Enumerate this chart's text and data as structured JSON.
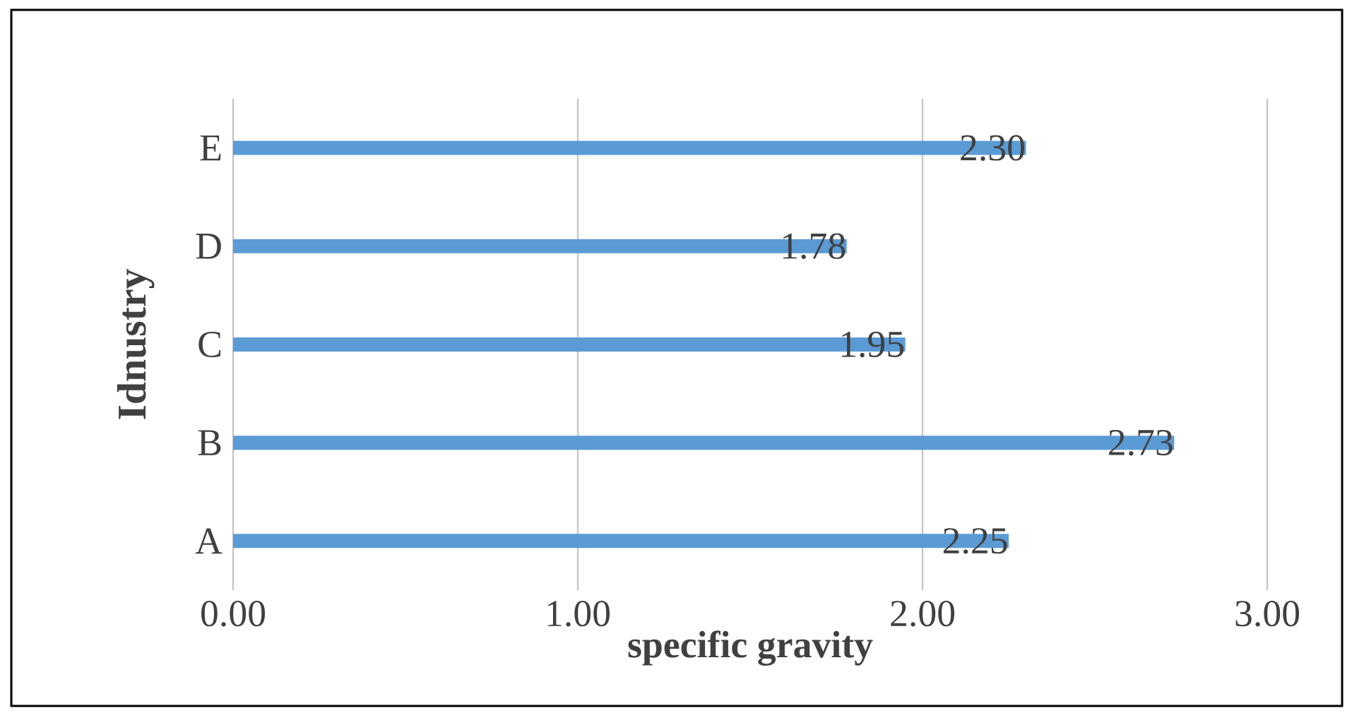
{
  "chart_data": {
    "type": "bar",
    "orientation": "horizontal",
    "xlabel": "specific gravity",
    "ylabel": "Idnustry",
    "categories": [
      "E",
      "D",
      "C",
      "B",
      "A"
    ],
    "values": [
      2.3,
      1.78,
      1.95,
      2.73,
      2.25
    ],
    "value_labels": [
      "2.30",
      "1.78",
      "1.95",
      "2.73",
      "2.25"
    ],
    "color": "#5b9bd5",
    "xlim": [
      0,
      3
    ],
    "xticks": [
      {
        "value": 0,
        "label": "0.00"
      },
      {
        "value": 1,
        "label": "1.00"
      },
      {
        "value": 2,
        "label": "2.00"
      },
      {
        "value": 3,
        "label": "3.00"
      }
    ],
    "grid": "x"
  }
}
